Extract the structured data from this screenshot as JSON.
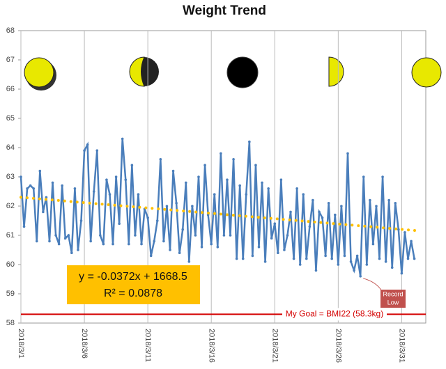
{
  "chart_data": {
    "type": "line",
    "title": "Weight Trend",
    "xlim": [
      0,
      31.9
    ],
    "ylim": [
      58,
      68
    ],
    "yticks": [
      58,
      59,
      60,
      61,
      62,
      63,
      64,
      65,
      66,
      67,
      68
    ],
    "xticks": [
      {
        "value": 0,
        "label": "2018/3/1"
      },
      {
        "value": 5,
        "label": "2018/3/6"
      },
      {
        "value": 10,
        "label": "2018/3/11"
      },
      {
        "value": 15,
        "label": "2018/3/16"
      },
      {
        "value": 20,
        "label": "2018/3/21"
      },
      {
        "value": 25,
        "label": "2018/3/26"
      },
      {
        "value": 30,
        "label": "2018/3/31"
      }
    ],
    "grid": true,
    "series": [
      {
        "color": "#4a7ebb",
        "x": [
          0,
          0.25,
          0.5,
          0.75,
          1,
          1.25,
          1.5,
          1.75,
          2,
          2.25,
          2.5,
          2.75,
          3,
          3.25,
          3.5,
          3.75,
          4,
          4.25,
          4.5,
          4.75,
          5,
          5.25,
          5.5,
          5.75,
          6,
          6.25,
          6.5,
          6.75,
          7,
          7.25,
          7.5,
          7.75,
          8,
          8.25,
          8.5,
          8.75,
          9,
          9.25,
          9.5,
          9.75,
          10,
          10.25,
          10.5,
          10.75,
          11,
          11.25,
          11.5,
          11.75,
          12,
          12.25,
          12.5,
          12.75,
          13,
          13.25,
          13.5,
          13.75,
          14,
          14.25,
          14.5,
          14.75,
          15,
          15.25,
          15.5,
          15.75,
          16,
          16.25,
          16.5,
          16.75,
          17,
          17.25,
          17.5,
          17.75,
          18,
          18.25,
          18.5,
          18.75,
          19,
          19.25,
          19.5,
          19.75,
          20,
          20.25,
          20.5,
          20.75,
          21,
          21.25,
          21.5,
          21.75,
          22,
          22.25,
          22.5,
          22.75,
          23,
          23.25,
          23.5,
          23.75,
          24,
          24.25,
          24.5,
          24.75,
          25,
          25.25,
          25.5,
          25.75,
          26,
          26.25,
          26.5,
          26.75,
          27,
          27.25,
          27.5,
          27.75,
          28,
          28.25,
          28.5,
          28.75,
          29,
          29.25,
          29.5,
          29.75,
          30,
          30.25,
          30.5,
          30.75,
          31
        ],
        "values": [
          63.0,
          61.3,
          62.6,
          62.7,
          62.6,
          60.8,
          63.2,
          61.8,
          62.3,
          60.8,
          62.8,
          61.0,
          60.7,
          62.7,
          60.9,
          61.0,
          60.4,
          62.6,
          60.5,
          61.5,
          63.9,
          64.1,
          60.8,
          62.5,
          63.9,
          61.0,
          60.7,
          62.9,
          62.4,
          60.7,
          63.0,
          61.4,
          64.3,
          62.9,
          60.7,
          63.4,
          61.0,
          62.4,
          60.7,
          61.9,
          61.6,
          60.3,
          60.8,
          61.5,
          63.6,
          60.8,
          62.0,
          60.5,
          63.2,
          62.1,
          60.4,
          61.2,
          62.8,
          60.1,
          62.0,
          61.0,
          63.0,
          60.6,
          63.4,
          61.7,
          60.7,
          62.4,
          60.6,
          63.8,
          61.0,
          62.9,
          61.0,
          63.6,
          60.2,
          62.7,
          60.2,
          62.4,
          64.2,
          60.3,
          63.4,
          60.6,
          62.8,
          60.1,
          62.6,
          60.9,
          61.4,
          60.4,
          62.9,
          60.5,
          61.0,
          61.8,
          60.2,
          62.6,
          60.0,
          62.4,
          60.2,
          61.3,
          62.2,
          59.8,
          61.8,
          61.6,
          60.3,
          62.1,
          60.2,
          61.7,
          60.0,
          62.0,
          60.3,
          63.8,
          60.1,
          59.8,
          60.3,
          59.6,
          63.0,
          60.0,
          62.2,
          60.7,
          62.0,
          60.2,
          63.0,
          60.1,
          62.2,
          59.9,
          62.1,
          61.2,
          59.7,
          61.1,
          60.2,
          60.8,
          60.2
        ]
      },
      {
        "color": "#ffc000",
        "x": [
          0,
          31.5
        ],
        "values": [
          62.3,
          61.15
        ]
      }
    ],
    "goal": {
      "value": 58.3,
      "label": "My Goal = BMI22 (58.3kg)",
      "color": "#d40000"
    },
    "equation": [
      "y = -0.0372x + 1668.5",
      "R² = 0.0878"
    ],
    "annotation": [
      "Record",
      "Low"
    ]
  }
}
